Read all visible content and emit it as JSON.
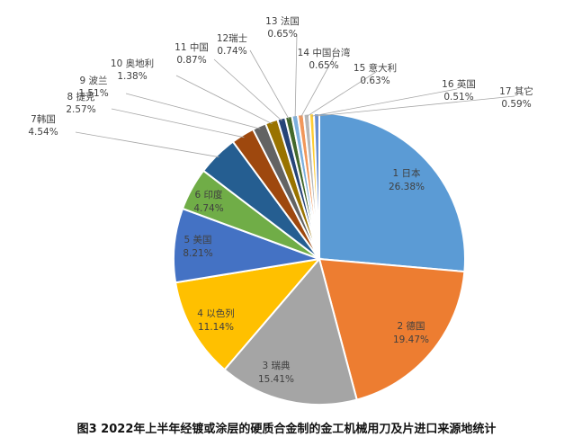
{
  "chart_data": {
    "type": "pie",
    "title": "图3 2022年上半年经镀或涂层的硬质合金制的金工机械用刀及片进口来源地统计",
    "slices": [
      {
        "name": "1 日本",
        "value": 26.38,
        "label": "26.38%",
        "color": "#5b9bd5"
      },
      {
        "name": "2 德国",
        "value": 19.47,
        "label": "19.47%",
        "color": "#ed7d31"
      },
      {
        "name": "3 瑞典",
        "value": 15.41,
        "label": "15.41%",
        "color": "#a5a5a5"
      },
      {
        "name": "4 以色列",
        "value": 11.14,
        "label": "11.14%",
        "color": "#ffc000"
      },
      {
        "name": "5 美国",
        "value": 8.21,
        "label": "8.21%",
        "color": "#4472c4"
      },
      {
        "name": "6 印度",
        "value": 4.74,
        "label": "4.74%",
        "color": "#70ad47"
      },
      {
        "name": "7韩国",
        "value": 4.54,
        "label": "4.54%",
        "color": "#255e91"
      },
      {
        "name": "8 捷克",
        "value": 2.57,
        "label": "2.57%",
        "color": "#9e480e"
      },
      {
        "name": "9 波兰",
        "value": 1.51,
        "label": "1.51%",
        "color": "#636363"
      },
      {
        "name": "10 奥地利",
        "value": 1.38,
        "label": "1.38%",
        "color": "#997300"
      },
      {
        "name": "11 中国",
        "value": 0.87,
        "label": "0.87%",
        "color": "#264478"
      },
      {
        "name": "12瑞士",
        "value": 0.74,
        "label": "0.74%",
        "color": "#43682b"
      },
      {
        "name": "13 法国",
        "value": 0.65,
        "label": "0.65%",
        "color": "#7cafdd"
      },
      {
        "name": "14 中国台湾",
        "value": 0.65,
        "label": "0.65%",
        "color": "#f1975a"
      },
      {
        "name": "15 意大利",
        "value": 0.63,
        "label": "0.63%",
        "color": "#b7b7b7"
      },
      {
        "name": "16 英国",
        "value": 0.51,
        "label": "0.51%",
        "color": "#ffcd33"
      },
      {
        "name": "17 其它",
        "value": 0.59,
        "label": "0.59%",
        "color": "#698ed0"
      }
    ]
  }
}
